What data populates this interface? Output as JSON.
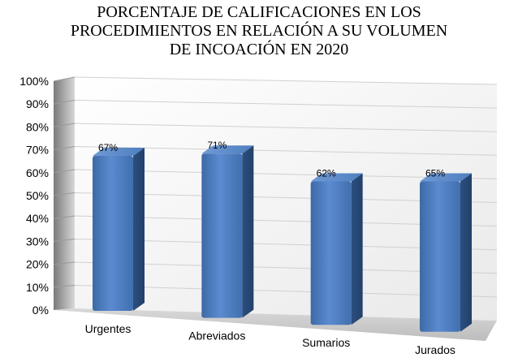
{
  "chart_data": {
    "type": "bar",
    "title_lines": [
      "PORCENTAJE DE CALIFICACIONES EN LOS",
      "PROCEDIMIENTOS EN RELACIÓN A SU VOLUMEN",
      "DE INCOACIÓN EN 2020"
    ],
    "categories": [
      "Urgentes",
      "Abreviados",
      "Sumarios",
      "Jurados"
    ],
    "values": [
      67,
      71,
      62,
      65
    ],
    "data_labels": [
      "67%",
      "71%",
      "62%",
      "65%"
    ],
    "y_ticks": [
      "0%",
      "10%",
      "20%",
      "30%",
      "40%",
      "50%",
      "60%",
      "70%",
      "80%",
      "90%",
      "100%"
    ],
    "ylim": [
      0,
      100
    ],
    "grid": true,
    "style": "3d-columns",
    "bar_color": "#4f81bd",
    "grid_color": "#d0d0d0"
  }
}
